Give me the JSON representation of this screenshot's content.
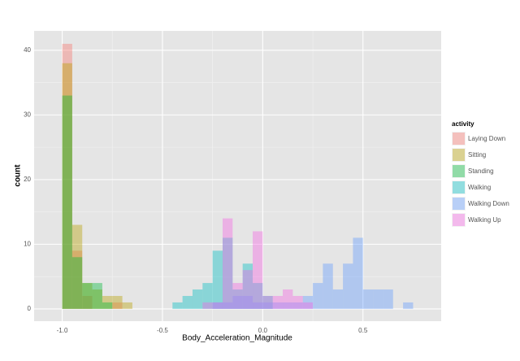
{
  "chart_data": {
    "type": "histogram",
    "xlabel": "Body_Acceleration_Magnitude",
    "ylabel": "count",
    "bins": [
      -1,
      -0.95,
      -0.9,
      -0.85,
      -0.8,
      -0.75,
      -0.7,
      -0.65,
      -0.6,
      -0.55,
      -0.5,
      -0.45,
      -0.4,
      -0.35,
      -0.3,
      -0.25,
      -0.2,
      -0.15,
      -0.1,
      -0.05,
      0,
      0.05,
      0.1,
      0.15,
      0.2,
      0.25,
      0.3,
      0.35,
      0.4,
      0.45,
      0.5,
      0.55,
      0.6,
      0.65,
      0.7,
      0.75,
      0.8
    ],
    "series": [
      {
        "name": "Laying Down",
        "color": "#F8766D",
        "values": [
          41,
          9,
          2,
          0,
          0,
          1,
          0,
          0,
          0,
          0,
          0,
          0,
          0,
          0,
          0,
          0,
          0,
          0,
          0,
          0,
          0,
          0,
          0,
          0,
          0,
          0,
          0,
          0,
          0,
          0,
          0,
          0,
          0,
          0,
          0,
          0
        ]
      },
      {
        "name": "Sitting",
        "color": "#B79F00",
        "values": [
          38,
          13,
          4,
          3,
          2,
          2,
          1,
          0,
          0,
          0,
          0,
          0,
          0,
          0,
          0,
          0,
          0,
          0,
          0,
          0,
          0,
          0,
          0,
          0,
          0,
          0,
          0,
          0,
          0,
          0,
          0,
          0,
          0,
          0,
          0,
          0
        ]
      },
      {
        "name": "Standing",
        "color": "#00BA38",
        "values": [
          33,
          8,
          4,
          4,
          1,
          0,
          0,
          0,
          0,
          0,
          0,
          0,
          0,
          0,
          0,
          0,
          0,
          0,
          0,
          0,
          0,
          0,
          0,
          0,
          0,
          0,
          0,
          0,
          0,
          0,
          0,
          0,
          0,
          0,
          0,
          0
        ]
      },
      {
        "name": "Walking",
        "color": "#00BFC4",
        "values": [
          0,
          0,
          0,
          0,
          0,
          0,
          0,
          0,
          0,
          0,
          0,
          1,
          2,
          3,
          4,
          9,
          11,
          3,
          7,
          4,
          2,
          0,
          0,
          0,
          0,
          0,
          0,
          0,
          0,
          0,
          0,
          0,
          0,
          0,
          0,
          0
        ]
      },
      {
        "name": "Walking Down",
        "color": "#619CFF",
        "values": [
          0,
          0,
          0,
          0,
          0,
          0,
          0,
          0,
          0,
          0,
          0,
          0,
          0,
          0,
          0,
          1,
          1,
          2,
          2,
          1,
          1,
          1,
          1,
          1,
          2,
          4,
          7,
          3,
          7,
          11,
          3,
          3,
          3,
          0,
          1,
          0
        ]
      },
      {
        "name": "Walking Up",
        "color": "#F564E3",
        "values": [
          0,
          0,
          0,
          0,
          0,
          0,
          0,
          0,
          0,
          0,
          0,
          0,
          0,
          0,
          1,
          1,
          14,
          4,
          6,
          12,
          2,
          2,
          3,
          2,
          1,
          0,
          0,
          0,
          0,
          0,
          0,
          0,
          0,
          0,
          0,
          0
        ]
      }
    ],
    "legend_title": "activity",
    "legend": "right",
    "opacity": 0.4,
    "xlim": [
      -1.14,
      0.89
    ],
    "ylim": [
      -1.9,
      43
    ],
    "xticks": [
      {
        "value": -1,
        "label": "-1.0"
      },
      -0.5,
      {
        "value": 0,
        "label": "0.0"
      },
      0.5
    ],
    "yticks": [
      0,
      10,
      20,
      30,
      40
    ],
    "grid": true
  }
}
